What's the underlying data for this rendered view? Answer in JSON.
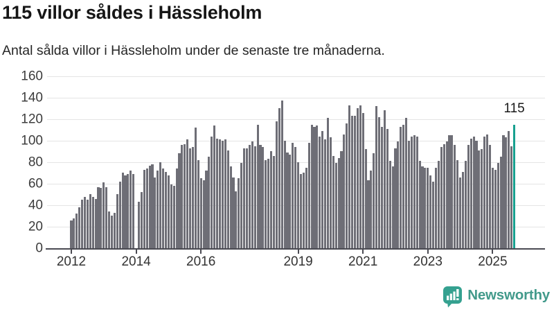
{
  "header": {
    "title": "115 villor såldes i Hässleholm",
    "subtitle": "Antal sålda villor i Hässleholm under de senaste tre månaderna."
  },
  "chart_data": {
    "type": "bar",
    "title": "115 villor såldes i Hässleholm",
    "xlabel": "",
    "ylabel": "",
    "ylim": [
      0,
      160
    ],
    "grid": true,
    "bar_color": "#6e6e76",
    "highlight_color": "#17a08f",
    "frequency": "monthly",
    "x_start_year": 2012,
    "values": [
      26,
      28,
      32,
      38,
      45,
      48,
      45,
      50,
      48,
      46,
      57,
      56,
      61,
      57,
      34,
      30,
      33,
      50,
      62,
      70,
      68,
      69,
      72,
      69,
      0,
      43,
      52,
      73,
      74,
      77,
      78,
      66,
      72,
      80,
      74,
      71,
      68,
      59,
      58,
      74,
      88,
      96,
      97,
      101,
      93,
      94,
      112,
      82,
      65,
      63,
      72,
      85,
      104,
      114,
      102,
      101,
      100,
      101,
      91,
      76,
      66,
      53,
      65,
      79,
      93,
      93,
      96,
      99,
      95,
      115,
      96,
      94,
      82,
      83,
      90,
      86,
      118,
      130,
      137,
      100,
      89,
      87,
      98,
      94,
      80,
      69,
      70,
      75,
      98,
      115,
      113,
      114,
      104,
      109,
      101,
      121,
      103,
      86,
      79,
      84,
      90,
      106,
      116,
      133,
      123,
      123,
      130,
      133,
      126,
      92,
      63,
      72,
      88,
      132,
      122,
      113,
      128,
      111,
      81,
      76,
      93,
      99,
      113,
      115,
      121,
      100,
      104,
      105,
      104,
      81,
      76,
      75,
      75,
      68,
      62,
      75,
      81,
      94,
      97,
      99,
      105,
      105,
      96,
      82,
      66,
      71,
      81,
      96,
      102,
      104,
      100,
      91,
      92,
      104,
      106,
      96,
      75,
      73,
      79,
      85,
      105,
      103,
      109,
      95,
      115
    ],
    "highlight": {
      "index": 164,
      "value": 115,
      "label": "115"
    },
    "y_ticks": [
      0,
      20,
      40,
      60,
      80,
      100,
      120,
      140,
      160
    ],
    "x_tick_years": [
      {
        "label": "2012",
        "month_index": 0
      },
      {
        "label": "2014",
        "month_index": 24
      },
      {
        "label": "2016",
        "month_index": 48
      },
      {
        "label": "2019",
        "month_index": 84
      },
      {
        "label": "2021",
        "month_index": 108
      },
      {
        "label": "2023",
        "month_index": 132
      },
      {
        "label": "2025",
        "month_index": 156
      }
    ],
    "legend": []
  },
  "branding": {
    "name": "Newsworthy",
    "icon": "newsworthy-bar-chart-bubble-icon",
    "icon_color": "#35a190",
    "text_color": "#429a8b"
  }
}
